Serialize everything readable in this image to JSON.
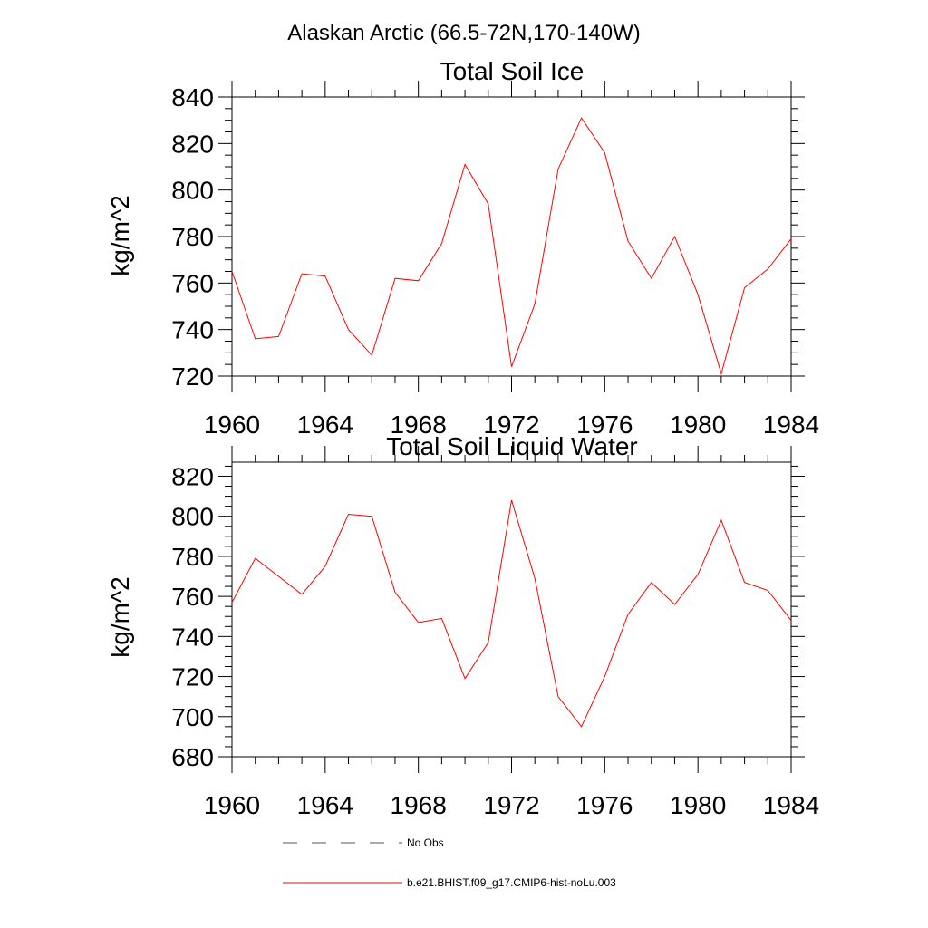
{
  "suptitle": "Alaskan Arctic (66.5-72N,170-140W)",
  "chart_data": [
    {
      "type": "line",
      "title": "Total Soil Ice",
      "xlabel": "",
      "ylabel": "kg/m^2",
      "xlim": [
        1960,
        1984
      ],
      "ylim": [
        720,
        840
      ],
      "xticks": [
        1960,
        1964,
        1968,
        1972,
        1976,
        1980,
        1984
      ],
      "yticks": [
        720,
        740,
        760,
        780,
        800,
        820,
        840
      ],
      "x": [
        1960,
        1961,
        1962,
        1963,
        1964,
        1965,
        1966,
        1967,
        1968,
        1969,
        1970,
        1971,
        1972,
        1973,
        1974,
        1975,
        1976,
        1977,
        1978,
        1979,
        1980,
        1981,
        1982,
        1983,
        1984
      ],
      "series": [
        {
          "name": "b.e21.BHIST.f09_g17.CMIP6-hist-noLu.003",
          "color": "#ff0000",
          "values": [
            765,
            736,
            737,
            764,
            763,
            740,
            729,
            762,
            761,
            777,
            811,
            794,
            724,
            751,
            809,
            831,
            816,
            778,
            762,
            780,
            755,
            721,
            758,
            766,
            779
          ]
        }
      ]
    },
    {
      "type": "line",
      "title": "Total Soil Liquid Water",
      "xlabel": "",
      "ylabel": "kg/m^2",
      "xlim": [
        1960,
        1984
      ],
      "ylim": [
        680,
        827
      ],
      "xticks": [
        1960,
        1964,
        1968,
        1972,
        1976,
        1980,
        1984
      ],
      "yticks": [
        680,
        700,
        720,
        740,
        760,
        780,
        800,
        820
      ],
      "x": [
        1960,
        1961,
        1962,
        1963,
        1964,
        1965,
        1966,
        1967,
        1968,
        1969,
        1970,
        1971,
        1972,
        1973,
        1974,
        1975,
        1976,
        1977,
        1978,
        1979,
        1980,
        1981,
        1982,
        1983,
        1984
      ],
      "series": [
        {
          "name": "b.e21.BHIST.f09_g17.CMIP6-hist-noLu.003",
          "color": "#ff0000",
          "values": [
            757,
            779,
            770,
            761,
            775,
            801,
            800,
            762,
            747,
            749,
            719,
            737,
            808,
            769,
            710,
            695,
            720,
            751,
            767,
            756,
            771,
            798,
            767,
            763,
            748
          ]
        }
      ]
    }
  ],
  "legend": {
    "placement": "bottom",
    "entries": [
      {
        "label": "No Obs",
        "color": "#555555",
        "style": "dashed"
      },
      {
        "label": "b.e21.BHIST.f09_g17.CMIP6-hist-noLu.003",
        "color": "#ff0000",
        "style": "solid"
      }
    ]
  }
}
